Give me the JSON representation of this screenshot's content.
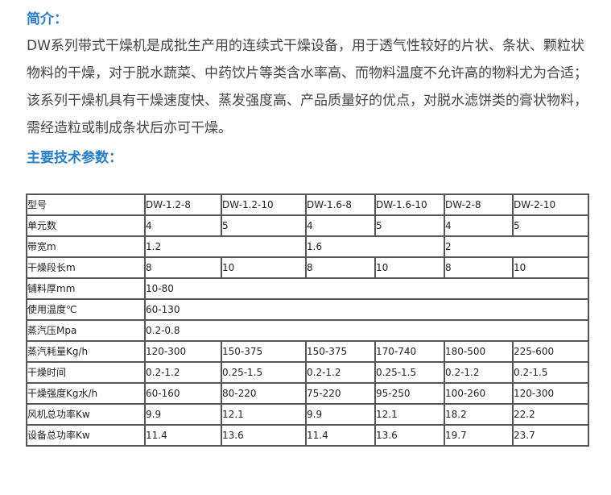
{
  "intro_heading": "简介：",
  "intro_text": "DW系列带式干燥机是成批生产用的连续式干燥设备，用于透气性较好的片状、条状、颗粒状物料的干燥，对于脱水蔬菜、中药饮片等类含水率高、而物料温度不允许高的物料尤为合适；该系列干燥机具有干燥速度快、蒸发强度高、产品质量好的优点，对脱水滤饼类的膏状物料，需经造粒或制成条状后亦可干燥。",
  "params_heading": "主要技术参数：",
  "table": {
    "rows": [
      [
        "型号",
        "DW-1.2-8",
        "DW-1.2-10",
        "DW-1.6-8",
        "DW-1.6-10",
        "DW-2-8",
        "DW-2-10"
      ],
      [
        "单元数",
        "4",
        "5",
        "4",
        "5",
        "4",
        "5"
      ],
      [
        "带宽m",
        "1.2",
        "1.6",
        "2"
      ],
      [
        "干燥段长m",
        "8",
        "10",
        "8",
        "10",
        "8",
        "10"
      ],
      [
        "铺料厚mm",
        "10-80"
      ],
      [
        "使用温度℃",
        "60-130"
      ],
      [
        "蒸汽压Mpa",
        "0.2-0.8"
      ],
      [
        "蒸汽耗量Kg/h",
        "120-300",
        "150-375",
        "150-375",
        "170-740",
        "180-500",
        "225-600"
      ],
      [
        "干燥时间",
        "0.2-1.2",
        "0.25-1.5",
        "0.2-1.2",
        "0.25-1.5",
        "0.2-1.2",
        "0.2-1.5"
      ],
      [
        "干燥强度Kg水/h",
        "60-160",
        "80-220",
        "75-220",
        "95-250",
        "100-260",
        "120-300"
      ],
      [
        "风机总功率Kw",
        "9.9",
        "12.1",
        "9.9",
        "12.1",
        "18.2",
        "22.2"
      ],
      [
        "设备总功率Kw",
        "11.4",
        "13.6",
        "11.4",
        "13.6",
        "19.7",
        "23.7"
      ]
    ]
  }
}
